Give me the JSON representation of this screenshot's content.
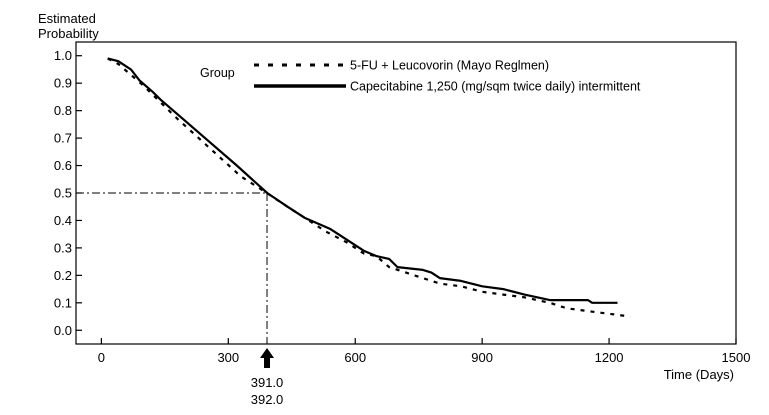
{
  "chart_data": {
    "type": "line",
    "title": "",
    "ylabel_lines": [
      "Estimated",
      "Probability"
    ],
    "xlabel": "Time (Days)",
    "xlim": [
      -60,
      1500
    ],
    "ylim": [
      -0.05,
      1.05
    ],
    "x_ticks": [
      0,
      300,
      600,
      900,
      1200,
      1500
    ],
    "y_ticks": [
      0.0,
      0.1,
      0.2,
      0.3,
      0.4,
      0.5,
      0.6,
      0.7,
      0.8,
      0.9,
      1.0
    ],
    "y_tick_labels": [
      "0.0",
      "0.1",
      "0.2",
      "0.3",
      "0.4",
      "0.5",
      "0.6",
      "0.7",
      "0.8",
      "0.9",
      "1.0"
    ],
    "grid": false,
    "legend": {
      "title": "Group",
      "placement": "top-right"
    },
    "series": [
      {
        "name": "5-FU + Leucovorin (Mayo Reglmen)",
        "style": "dashed",
        "color": "#000000",
        "x": [
          15,
          40,
          70,
          100,
          140,
          180,
          230,
          280,
          330,
          391,
          430,
          480,
          530,
          580,
          620,
          650,
          680,
          720,
          760,
          800,
          850,
          900,
          950,
          1000,
          1060,
          1100,
          1150,
          1200,
          1250
        ],
        "y": [
          0.99,
          0.97,
          0.93,
          0.89,
          0.83,
          0.77,
          0.7,
          0.63,
          0.56,
          0.5,
          0.46,
          0.41,
          0.36,
          0.32,
          0.28,
          0.27,
          0.23,
          0.21,
          0.19,
          0.17,
          0.16,
          0.14,
          0.13,
          0.12,
          0.1,
          0.08,
          0.07,
          0.06,
          0.05
        ]
      },
      {
        "name": "Capecitabine 1,250 (mg/sqm twice daily) intermittent",
        "style": "solid",
        "color": "#000000",
        "x": [
          15,
          40,
          70,
          90,
          120,
          140,
          200,
          260,
          320,
          392,
          440,
          480,
          540,
          580,
          620,
          650,
          680,
          700,
          760,
          780,
          800,
          850,
          900,
          950,
          1000,
          1060,
          1100,
          1150,
          1160,
          1220
        ],
        "y": [
          0.99,
          0.98,
          0.95,
          0.91,
          0.87,
          0.84,
          0.76,
          0.68,
          0.6,
          0.5,
          0.45,
          0.41,
          0.37,
          0.33,
          0.29,
          0.27,
          0.26,
          0.23,
          0.22,
          0.21,
          0.19,
          0.18,
          0.16,
          0.15,
          0.13,
          0.11,
          0.11,
          0.11,
          0.1,
          0.1
        ]
      }
    ],
    "median": {
      "y": 0.5,
      "x": 391.5,
      "labels": [
        "391.0",
        "392.0"
      ]
    }
  }
}
